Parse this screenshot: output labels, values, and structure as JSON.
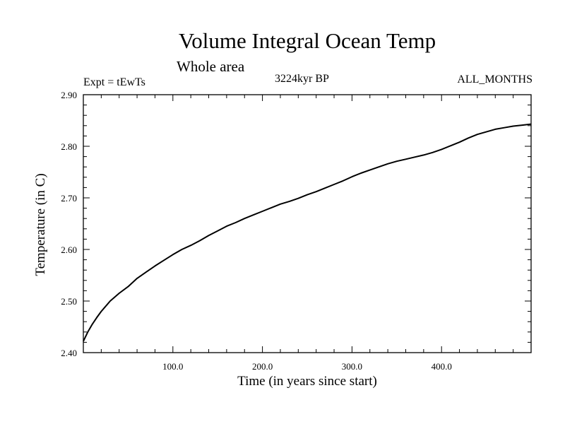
{
  "chart_data": {
    "type": "line",
    "title": "Volume Integral Ocean Temp",
    "subtitle": "Whole area",
    "annotations": {
      "left": "Expt = tEwTs",
      "center": "3224kyr BP",
      "right": "ALL_MONTHS"
    },
    "xlabel": "Time (in years since start)",
    "ylabel": "Temperature (in C)",
    "xlim": [
      0,
      500
    ],
    "ylim": [
      2.4,
      2.9
    ],
    "x_ticks": [
      100,
      200,
      300,
      400
    ],
    "x_tick_labels": [
      "100.0",
      "200.0",
      "300.0",
      "400.0"
    ],
    "y_ticks": [
      2.4,
      2.5,
      2.6,
      2.7,
      2.8,
      2.9
    ],
    "y_tick_labels": [
      "2.40",
      "2.50",
      "2.60",
      "2.70",
      "2.80",
      "2.90"
    ],
    "grid": false,
    "series": [
      {
        "name": "Volume Integral Ocean Temp",
        "x": [
          0,
          5,
          10,
          15,
          20,
          25,
          30,
          40,
          50,
          60,
          70,
          80,
          90,
          100,
          110,
          120,
          130,
          140,
          150,
          160,
          170,
          180,
          190,
          200,
          210,
          220,
          230,
          240,
          250,
          260,
          270,
          280,
          290,
          300,
          310,
          320,
          330,
          340,
          350,
          360,
          370,
          380,
          390,
          400,
          410,
          420,
          430,
          440,
          450,
          460,
          470,
          480,
          490,
          500
        ],
        "values": [
          2.422,
          2.44,
          2.455,
          2.468,
          2.48,
          2.49,
          2.5,
          2.515,
          2.528,
          2.544,
          2.556,
          2.568,
          2.579,
          2.59,
          2.6,
          2.608,
          2.617,
          2.627,
          2.636,
          2.645,
          2.652,
          2.66,
          2.667,
          2.674,
          2.681,
          2.688,
          2.693,
          2.699,
          2.706,
          2.712,
          2.719,
          2.726,
          2.733,
          2.741,
          2.748,
          2.754,
          2.76,
          2.766,
          2.771,
          2.775,
          2.779,
          2.783,
          2.788,
          2.794,
          2.801,
          2.808,
          2.816,
          2.823,
          2.828,
          2.833,
          2.836,
          2.839,
          2.841,
          2.843
        ]
      }
    ]
  }
}
